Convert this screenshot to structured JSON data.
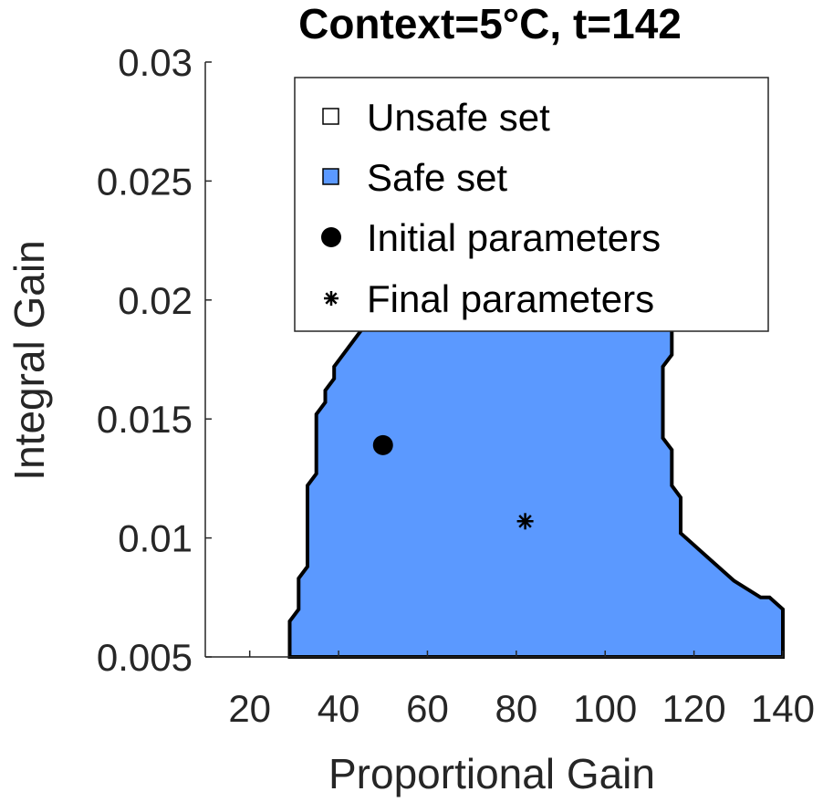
{
  "chart_data": {
    "type": "area",
    "title": "Context=5°C, t=142",
    "xlabel": "Proportional Gain",
    "ylabel": "Integral Gain",
    "xlim": [
      10,
      140
    ],
    "ylim": [
      0.005,
      0.03
    ],
    "x_ticks": [
      20,
      40,
      60,
      80,
      100,
      120,
      140
    ],
    "x_tick_labels": [
      "20",
      "40",
      "60",
      "80",
      "100",
      "120",
      "140"
    ],
    "y_ticks": [
      0.005,
      0.01,
      0.015,
      0.02,
      0.025,
      0.03
    ],
    "y_tick_labels": [
      "0.005",
      "0.01",
      "0.015",
      "0.02",
      "0.025",
      "0.03"
    ],
    "legend": {
      "placement": "top-right",
      "entries": [
        {
          "label": "Unsafe set",
          "marker": "square-open"
        },
        {
          "label": "Safe set",
          "marker": "square-filled"
        },
        {
          "label": "Initial parameters",
          "marker": "filled-circle"
        },
        {
          "label": "Final parameters",
          "marker": "asterisk"
        }
      ]
    },
    "safe_set_boundary": [
      [
        29.0,
        0.005
      ],
      [
        29.0,
        0.0065
      ],
      [
        31.0,
        0.007
      ],
      [
        31.0,
        0.0083
      ],
      [
        33.0,
        0.0088
      ],
      [
        33.0,
        0.0122
      ],
      [
        35.0,
        0.0127
      ],
      [
        35.0,
        0.0152
      ],
      [
        37.0,
        0.0157
      ],
      [
        37.0,
        0.0162
      ],
      [
        39.0,
        0.0167
      ],
      [
        39.0,
        0.0172
      ],
      [
        41.0,
        0.0177
      ],
      [
        45.0,
        0.0187
      ],
      [
        49.0,
        0.0197
      ],
      [
        53.0,
        0.0202
      ],
      [
        115.0,
        0.0202
      ],
      [
        115.0,
        0.0177
      ],
      [
        113.0,
        0.0172
      ],
      [
        113.0,
        0.0142
      ],
      [
        115.0,
        0.0137
      ],
      [
        115.0,
        0.0122
      ],
      [
        117.0,
        0.0117
      ],
      [
        117.0,
        0.0102
      ],
      [
        123.0,
        0.0092
      ],
      [
        129.0,
        0.0082
      ],
      [
        135.0,
        0.0075
      ],
      [
        137.0,
        0.0075
      ],
      [
        140.0,
        0.007
      ],
      [
        140.0,
        0.005
      ]
    ],
    "safe_set_color": "#5b99ff",
    "initial_parameters": {
      "x": 50,
      "y": 0.0139,
      "color": "#000000"
    },
    "final_parameters": {
      "x": 82,
      "y": 0.0107,
      "color": "#000000"
    }
  }
}
